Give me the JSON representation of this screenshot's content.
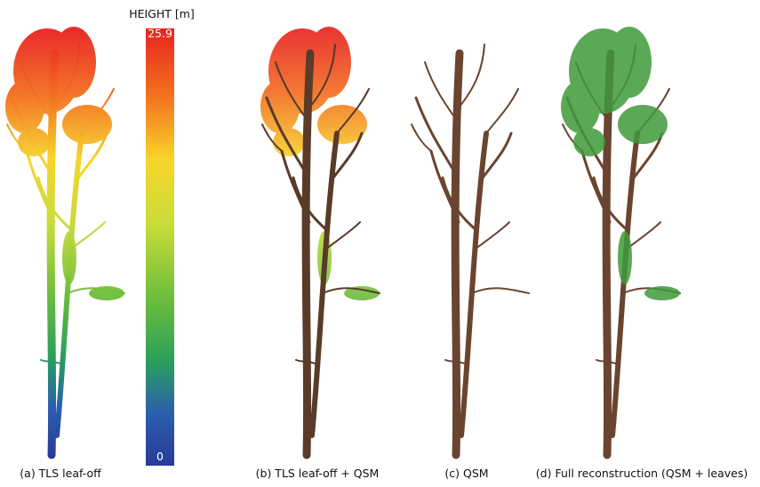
{
  "colorbar": {
    "title": "HEIGHT [m]",
    "max": 25.9,
    "min": 0
  },
  "panels": [
    {
      "caption": "(a) TLS leaf-off"
    },
    {
      "caption": "(b) TLS leaf-off + QSM"
    },
    {
      "caption": "(c) QSM"
    },
    {
      "caption": "(d) Full reconstruction (QSM + leaves)"
    }
  ]
}
